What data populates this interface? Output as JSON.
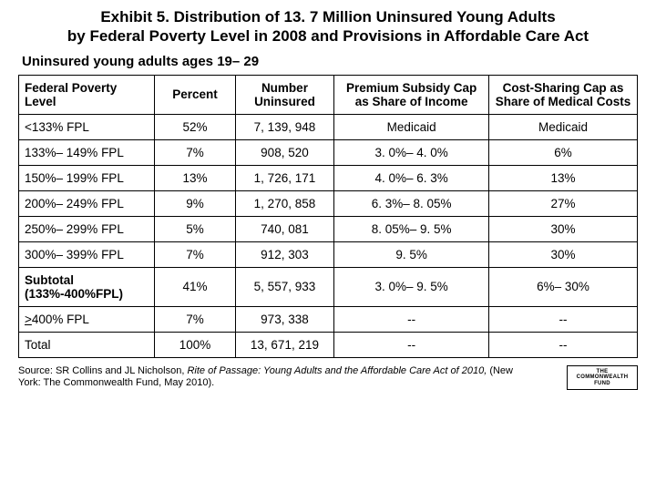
{
  "title_line1": "Exhibit 5. Distribution of 13. 7 Million Uninsured Young Adults",
  "title_line2": "by Federal Poverty Level in 2008 and Provisions in Affordable Care Act",
  "subtitle": "Uninsured young adults ages 19– 29",
  "table": {
    "type": "table",
    "columns": [
      "Federal Poverty Level",
      "Percent",
      "Number Uninsured",
      "Premium Subsidy Cap as Share of Income",
      "Cost-Sharing Cap as Share of Medical Costs"
    ],
    "column_align": [
      "left",
      "center",
      "center",
      "center",
      "center"
    ],
    "column_widths_pct": [
      22,
      13,
      16,
      25,
      24
    ],
    "border_color": "#000000",
    "background_color": "#ffffff",
    "font_size_pt": 10,
    "header_font_weight": "bold",
    "rows": [
      {
        "cells": [
          "<133% FPL",
          "52%",
          "7, 139, 948",
          "Medicaid",
          "Medicaid"
        ]
      },
      {
        "cells": [
          "133%– 149% FPL",
          "7%",
          "908, 520",
          "3. 0%– 4. 0%",
          "6%"
        ]
      },
      {
        "cells": [
          "150%– 199% FPL",
          "13%",
          "1, 726, 171",
          "4. 0%– 6. 3%",
          "13%"
        ]
      },
      {
        "cells": [
          "200%– 249% FPL",
          "9%",
          "1, 270, 858",
          "6. 3%– 8. 05%",
          "27%"
        ]
      },
      {
        "cells": [
          "250%– 299% FPL",
          "5%",
          "740, 081",
          "8. 05%– 9. 5%",
          "30%"
        ]
      },
      {
        "cells": [
          "300%– 399% FPL",
          "7%",
          "912, 303",
          "9. 5%",
          "30%"
        ]
      },
      {
        "cells": [
          "Subtotal (133%-400%FPL)",
          "41%",
          "5, 557, 933",
          "3. 0%– 9. 5%",
          "6%– 30%"
        ],
        "bold_first": true
      },
      {
        "cells": [
          ">400% FPL",
          "7%",
          "973, 338",
          "--",
          "--"
        ],
        "underline_first": true
      },
      {
        "cells": [
          "Total",
          "100%",
          "13, 671, 219",
          "--",
          "--"
        ]
      }
    ]
  },
  "source": {
    "prefix": "Source: SR Collins and JL Nicholson, ",
    "italic": "Rite of Passage: Young Adults and the Affordable Care Act of 2010,",
    "suffix": " (New York: The Commonwealth Fund, May 2010)."
  },
  "logo_text": "THE\nCOMMONWEALTH\nFUND",
  "colors": {
    "background": "#ffffff",
    "text": "#000000",
    "border": "#000000"
  }
}
